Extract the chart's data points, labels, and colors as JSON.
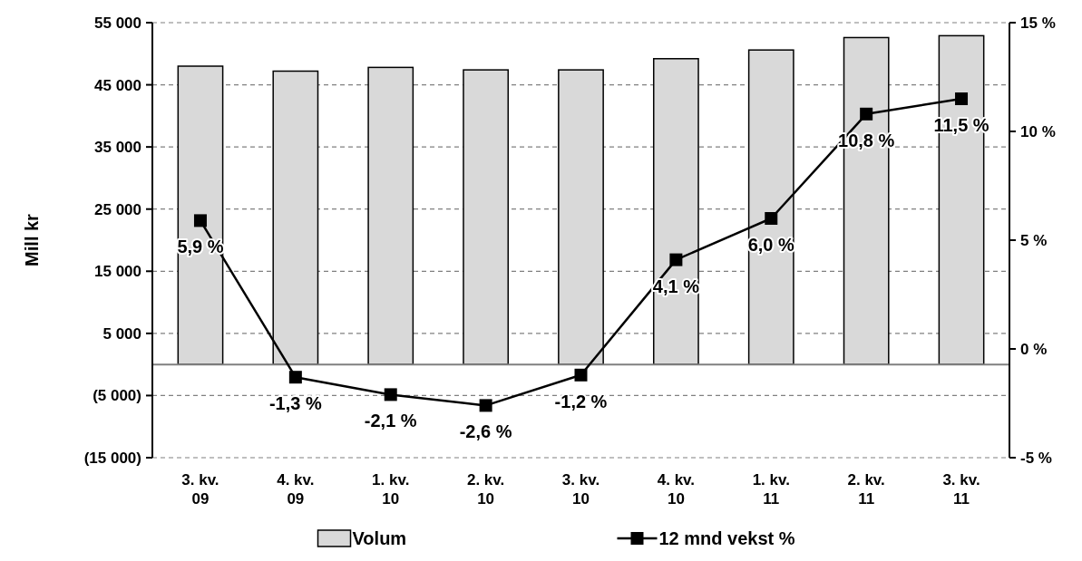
{
  "chart_data": {
    "type": "bar",
    "ylabel": "Mill kr",
    "categories": [
      "3. kv. 09",
      "4. kv. 09",
      "1. kv. 10",
      "2. kv. 10",
      "3. kv. 10",
      "4. kv. 10",
      "1. kv. 11",
      "2. kv. 11",
      "3. kv. 11"
    ],
    "series": [
      {
        "name": "Volum",
        "color": "#d9d9d9",
        "values": [
          48000,
          47200,
          47800,
          47400,
          47400,
          49200,
          50600,
          52600,
          52900
        ]
      },
      {
        "name": "12 mnd vekst %",
        "type": "line",
        "axis": "y2",
        "color": "#000000",
        "marker": "square",
        "data_labels": true,
        "value_labels": [
          "5,9 %",
          "-1,3 %",
          "-2,1 %",
          "-2,6 %",
          "-1,2 %",
          "4,1 %",
          "6,0 %",
          "10,8 %",
          "11,5 %"
        ],
        "values": [
          5.9,
          -1.3,
          -2.1,
          -2.6,
          -1.2,
          4.1,
          6.0,
          10.8,
          11.5
        ]
      }
    ],
    "ylim": [
      -15000,
      55000
    ],
    "yticks": [
      {
        "value": -15000,
        "label": "(15 000)"
      },
      {
        "value": -5000,
        "label": "(5 000)"
      },
      {
        "value": 5000,
        "label": "5 000"
      },
      {
        "value": 15000,
        "label": "15 000"
      },
      {
        "value": 25000,
        "label": "25 000"
      },
      {
        "value": 35000,
        "label": "35 000"
      },
      {
        "value": 45000,
        "label": "45 000"
      },
      {
        "value": 55000,
        "label": "55 000"
      }
    ],
    "y2lim": [
      -5,
      15
    ],
    "y2ticks": [
      {
        "value": -5,
        "label": "-5 %"
      },
      {
        "value": 0,
        "label": "0 %"
      },
      {
        "value": 5,
        "label": "5 %"
      },
      {
        "value": 10,
        "label": "10 %"
      },
      {
        "value": 15,
        "label": "15 %"
      }
    ],
    "grid": "y",
    "legend": "bottom"
  }
}
